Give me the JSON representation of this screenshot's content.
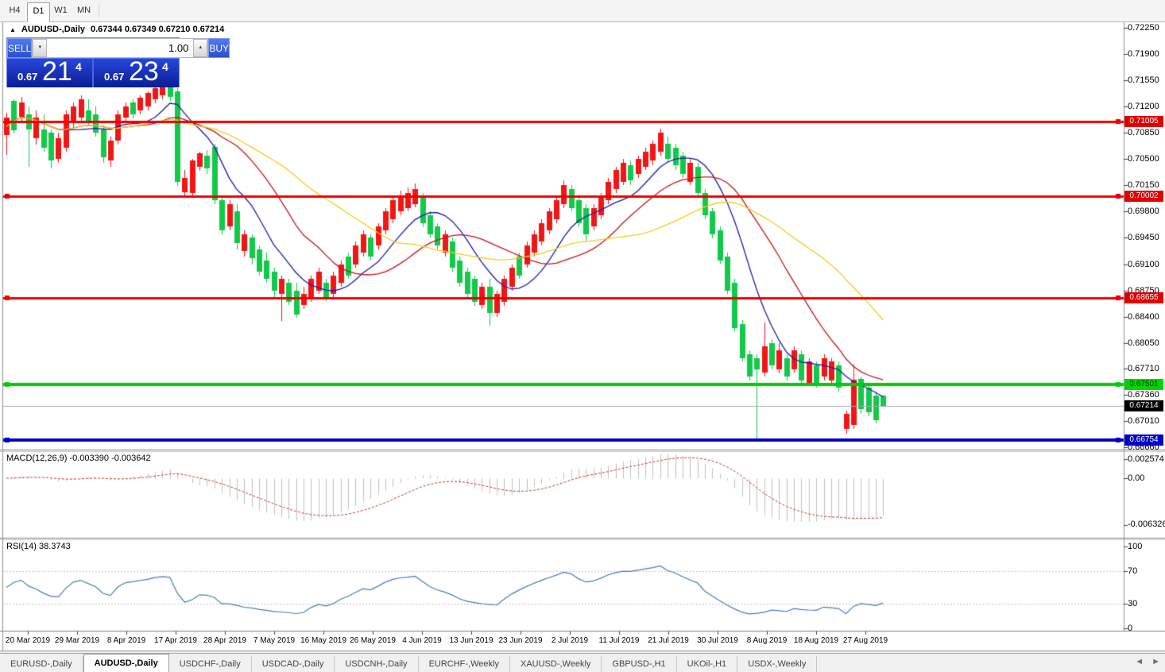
{
  "toolbar": {
    "timeframes": [
      {
        "label": "H4",
        "active": false
      },
      {
        "label": "D1",
        "active": true
      },
      {
        "label": "W1",
        "active": false
      },
      {
        "label": "MN",
        "active": false
      }
    ]
  },
  "chart": {
    "collapse_icon": "▲",
    "title": "AUDUSD-,Daily",
    "values": "0.67344 0.67349 0.67210 0.67214"
  },
  "trade_panel": {
    "sell_label": "SELL",
    "buy_label": "BUY",
    "volume": "1.00",
    "spin_down_icon": "▼",
    "spin_up_icon": "▲",
    "sell_price_small": "0.67",
    "sell_price_big": "21",
    "sell_price_sup": "4",
    "buy_price_small": "0.67",
    "buy_price_big": "23",
    "buy_price_sup": "4"
  },
  "indicators": {
    "macd_label": "MACD(12,26,9) -0.003390 -0.003642",
    "rsi_label": "RSI(14) 38.3743"
  },
  "tabs": {
    "items": [
      {
        "label": "EURUSD-,Daily",
        "active": false
      },
      {
        "label": "AUDUSD-,Daily",
        "active": true
      },
      {
        "label": "USDCHF-,Daily",
        "active": false
      },
      {
        "label": "USDCAD-,Daily",
        "active": false
      },
      {
        "label": "USDCNH-,Daily",
        "active": false
      },
      {
        "label": "EURCHF-,Weekly",
        "active": false
      },
      {
        "label": "XAUUSD-,Weekly",
        "active": false
      },
      {
        "label": "GBPUSD-,H1",
        "active": false
      },
      {
        "label": "UKOil-,H1",
        "active": false
      },
      {
        "label": "USDX-,Weekly",
        "active": false
      }
    ],
    "scroll_left_icon": "◄",
    "scroll_right_icon": "►"
  },
  "chart_data": {
    "type": "candlestick",
    "symbol": "AUDUSD-",
    "timeframe": "Daily",
    "ohlc_display": {
      "open": "0.67344",
      "high": "0.67349",
      "low": "0.67210",
      "close": "0.67214"
    },
    "current_price": 0.67214,
    "colors": {
      "bull_body": "#f21515",
      "bear_body": "#12c94a",
      "ma_fast": "#1a1ab4",
      "ma_mid": "#c81414",
      "ma_slow": "#f0cf1e",
      "macd_hist": "#c0c0c0",
      "macd_signal": "#cc3333",
      "rsi_line": "#4a7ac0"
    },
    "y_axis_ticks": [
      "0.72250",
      "0.71900",
      "0.71550",
      "0.71200",
      "0.70850",
      "0.70500",
      "0.70150",
      "0.69800",
      "0.69450",
      "0.69100",
      "0.68750",
      "0.68400",
      "0.68050",
      "0.67710",
      "0.67360",
      "0.67010",
      "0.66660"
    ],
    "price_tags": [
      {
        "value": 0.71005,
        "label": "0.71005",
        "bg": "#e00000",
        "fg": "#ffffff"
      },
      {
        "value": 0.70002,
        "label": "0.70002",
        "bg": "#e00000",
        "fg": "#ffffff"
      },
      {
        "value": 0.68655,
        "label": "0.68655",
        "bg": "#e00000",
        "fg": "#ffffff"
      },
      {
        "value": 0.67501,
        "label": "0.67501",
        "bg": "#00d400",
        "fg": "#003300"
      },
      {
        "value": 0.67214,
        "label": "0.67214",
        "bg": "#000000",
        "fg": "#ffffff"
      },
      {
        "value": 0.66754,
        "label": "0.66754",
        "bg": "#0000cc",
        "fg": "#ffffff"
      }
    ],
    "levels": [
      {
        "price": 0.71005,
        "color": "#ee0000",
        "width": 3
      },
      {
        "price": 0.70002,
        "color": "#ee0000",
        "width": 3
      },
      {
        "price": 0.68655,
        "color": "#ee0000",
        "width": 3
      },
      {
        "price": 0.67501,
        "color": "#00cc00",
        "width": 4
      },
      {
        "price": 0.66754,
        "color": "#0000bb",
        "width": 4
      }
    ],
    "x_axis_ticks": [
      "20 Mar 2019",
      "29 Mar 2019",
      "8 Apr 2019",
      "17 Apr 2019",
      "28 Apr 2019",
      "7 May 2019",
      "16 May 2019",
      "26 May 2019",
      "4 Jun 2019",
      "13 Jun 2019",
      "23 Jun 2019",
      "2 Jul 2019",
      "11 Jul 2019",
      "21 Jul 2019",
      "30 Jul 2019",
      "8 Aug 2019",
      "18 Aug 2019",
      "27 Aug 2019"
    ],
    "candles": [
      [
        0.7112,
        0.7056,
        0.7105,
        0.7082,
        "r"
      ],
      [
        0.713,
        0.7085,
        0.7128,
        0.7088,
        "g"
      ],
      [
        0.7133,
        0.7098,
        0.7125,
        0.7106,
        "r"
      ],
      [
        0.712,
        0.704,
        0.711,
        0.709,
        "g"
      ],
      [
        0.7115,
        0.707,
        0.7105,
        0.7078,
        "r"
      ],
      [
        0.711,
        0.706,
        0.709,
        0.7065,
        "g"
      ],
      [
        0.709,
        0.7038,
        0.7085,
        0.7048,
        "g"
      ],
      [
        0.7085,
        0.7045,
        0.7078,
        0.705,
        "r"
      ],
      [
        0.7115,
        0.706,
        0.711,
        0.7065,
        "r"
      ],
      [
        0.7125,
        0.709,
        0.712,
        0.71,
        "r"
      ],
      [
        0.7135,
        0.71,
        0.713,
        0.7105,
        "r"
      ],
      [
        0.713,
        0.7095,
        0.7115,
        0.71,
        "g"
      ],
      [
        0.712,
        0.708,
        0.711,
        0.7085,
        "g"
      ],
      [
        0.7095,
        0.7045,
        0.709,
        0.7052,
        "g"
      ],
      [
        0.708,
        0.704,
        0.7075,
        0.7048,
        "r"
      ],
      [
        0.7115,
        0.707,
        0.711,
        0.7075,
        "r"
      ],
      [
        0.7125,
        0.71,
        0.712,
        0.7105,
        "r"
      ],
      [
        0.713,
        0.7105,
        0.7125,
        0.711,
        "g"
      ],
      [
        0.7135,
        0.711,
        0.7132,
        0.7115,
        "r"
      ],
      [
        0.714,
        0.7115,
        0.7138,
        0.712,
        "r"
      ],
      [
        0.7148,
        0.7125,
        0.7145,
        0.713,
        "r"
      ],
      [
        0.7155,
        0.713,
        0.715,
        0.7135,
        "r"
      ],
      [
        0.7152,
        0.7128,
        0.7148,
        0.7133,
        "g"
      ],
      [
        0.7145,
        0.7015,
        0.714,
        0.702,
        "g"
      ],
      [
        0.7035,
        0.7,
        0.7025,
        0.7006,
        "r"
      ],
      [
        0.705,
        0.7,
        0.7048,
        0.7005,
        "r"
      ],
      [
        0.706,
        0.7035,
        0.7058,
        0.704,
        "r"
      ],
      [
        0.7062,
        0.703,
        0.7055,
        0.7038,
        "g"
      ],
      [
        0.707,
        0.699,
        0.7066,
        0.6995,
        "g"
      ],
      [
        0.7,
        0.695,
        0.6995,
        0.6955,
        "g"
      ],
      [
        0.6995,
        0.6955,
        0.699,
        0.696,
        "r"
      ],
      [
        0.699,
        0.693,
        0.698,
        0.6938,
        "g"
      ],
      [
        0.6955,
        0.692,
        0.695,
        0.6928,
        "r"
      ],
      [
        0.695,
        0.691,
        0.6945,
        0.6918,
        "g"
      ],
      [
        0.6935,
        0.6895,
        0.693,
        0.69,
        "g"
      ],
      [
        0.6925,
        0.6885,
        0.6915,
        0.689,
        "g"
      ],
      [
        0.6905,
        0.6865,
        0.69,
        0.6875,
        "g"
      ],
      [
        0.6895,
        0.6835,
        0.689,
        0.687,
        "r"
      ],
      [
        0.689,
        0.6855,
        0.6885,
        0.686,
        "g"
      ],
      [
        0.6885,
        0.6838,
        0.6875,
        0.6843,
        "g"
      ],
      [
        0.688,
        0.685,
        0.687,
        0.6855,
        "r"
      ],
      [
        0.6895,
        0.686,
        0.689,
        0.6865,
        "r"
      ],
      [
        0.6905,
        0.687,
        0.69,
        0.6875,
        "r"
      ],
      [
        0.689,
        0.686,
        0.6885,
        0.6865,
        "g"
      ],
      [
        0.69,
        0.6865,
        0.6895,
        0.687,
        "r"
      ],
      [
        0.6915,
        0.688,
        0.691,
        0.6885,
        "r"
      ],
      [
        0.6925,
        0.689,
        0.692,
        0.6895,
        "g"
      ],
      [
        0.694,
        0.6905,
        0.6935,
        0.691,
        "r"
      ],
      [
        0.6955,
        0.692,
        0.695,
        0.6925,
        "r"
      ],
      [
        0.695,
        0.6915,
        0.6945,
        0.692,
        "g"
      ],
      [
        0.6965,
        0.693,
        0.696,
        0.6935,
        "r"
      ],
      [
        0.6985,
        0.695,
        0.698,
        0.6955,
        "r"
      ],
      [
        0.7,
        0.6965,
        0.6995,
        0.697,
        "r"
      ],
      [
        0.7008,
        0.6975,
        0.7002,
        0.698,
        "r"
      ],
      [
        0.7012,
        0.698,
        0.7005,
        0.6985,
        "r"
      ],
      [
        0.7017,
        0.6985,
        0.701,
        0.699,
        "r"
      ],
      [
        0.7005,
        0.696,
        0.7,
        0.6965,
        "g"
      ],
      [
        0.698,
        0.6945,
        0.6975,
        0.695,
        "g"
      ],
      [
        0.6965,
        0.693,
        0.696,
        0.6935,
        "g"
      ],
      [
        0.6955,
        0.692,
        0.695,
        0.6925,
        "r"
      ],
      [
        0.6945,
        0.69,
        0.694,
        0.6905,
        "g"
      ],
      [
        0.692,
        0.688,
        0.6915,
        0.6885,
        "g"
      ],
      [
        0.6905,
        0.6865,
        0.69,
        0.687,
        "g"
      ],
      [
        0.6895,
        0.6855,
        0.689,
        0.686,
        "g"
      ],
      [
        0.6885,
        0.685,
        0.688,
        0.6855,
        "r"
      ],
      [
        0.689,
        0.6828,
        0.688,
        0.6845,
        "g"
      ],
      [
        0.6875,
        0.684,
        0.687,
        0.6845,
        "r"
      ],
      [
        0.6895,
        0.6855,
        0.689,
        0.686,
        "r"
      ],
      [
        0.691,
        0.6875,
        0.6905,
        0.688,
        "r"
      ],
      [
        0.6925,
        0.689,
        0.692,
        0.6895,
        "g"
      ],
      [
        0.694,
        0.6905,
        0.6935,
        0.691,
        "r"
      ],
      [
        0.6955,
        0.692,
        0.695,
        0.6925,
        "r"
      ],
      [
        0.697,
        0.6935,
        0.6965,
        0.694,
        "r"
      ],
      [
        0.6985,
        0.695,
        0.698,
        0.6955,
        "r"
      ],
      [
        0.7,
        0.6965,
        0.6995,
        0.697,
        "r"
      ],
      [
        0.7022,
        0.6985,
        0.7015,
        0.699,
        "r"
      ],
      [
        0.7015,
        0.698,
        0.701,
        0.6985,
        "g"
      ],
      [
        0.7,
        0.696,
        0.6995,
        0.6965,
        "g"
      ],
      [
        0.699,
        0.694,
        0.6985,
        0.695,
        "g"
      ],
      [
        0.699,
        0.6955,
        0.6985,
        0.696,
        "r"
      ],
      [
        0.7005,
        0.697,
        0.7,
        0.6975,
        "r"
      ],
      [
        0.7025,
        0.699,
        0.702,
        0.6995,
        "r"
      ],
      [
        0.704,
        0.7005,
        0.7035,
        0.701,
        "r"
      ],
      [
        0.705,
        0.7015,
        0.7045,
        0.702,
        "r"
      ],
      [
        0.7048,
        0.7015,
        0.7042,
        0.7022,
        "g"
      ],
      [
        0.7055,
        0.7025,
        0.705,
        0.703,
        "r"
      ],
      [
        0.7065,
        0.7035,
        0.706,
        0.704,
        "r"
      ],
      [
        0.7075,
        0.7042,
        0.707,
        0.7048,
        "r"
      ],
      [
        0.70907,
        0.7055,
        0.7085,
        0.706,
        "r"
      ],
      [
        0.708,
        0.7045,
        0.707,
        0.705,
        "g"
      ],
      [
        0.707,
        0.7035,
        0.7065,
        0.7042,
        "g"
      ],
      [
        0.706,
        0.7025,
        0.7055,
        0.703,
        "g"
      ],
      [
        0.705,
        0.7015,
        0.7045,
        0.702,
        "r"
      ],
      [
        0.7045,
        0.7,
        0.704,
        0.7005,
        "g"
      ],
      [
        0.701,
        0.697,
        0.7005,
        0.6975,
        "g"
      ],
      [
        0.6985,
        0.6945,
        0.698,
        0.695,
        "g"
      ],
      [
        0.696,
        0.691,
        0.6955,
        0.6915,
        "g"
      ],
      [
        0.6925,
        0.687,
        0.692,
        0.6875,
        "g"
      ],
      [
        0.689,
        0.682,
        0.6885,
        0.6825,
        "g"
      ],
      [
        0.6835,
        0.678,
        0.683,
        0.6785,
        "g"
      ],
      [
        0.6795,
        0.6755,
        0.679,
        0.676,
        "g"
      ],
      [
        0.679,
        0.6677,
        0.6785,
        0.677,
        "g"
      ],
      [
        0.6832,
        0.676,
        0.68,
        0.6765,
        "r"
      ],
      [
        0.681,
        0.677,
        0.6805,
        0.6775,
        "g"
      ],
      [
        0.6805,
        0.6765,
        0.6795,
        0.677,
        "r"
      ],
      [
        0.679,
        0.6755,
        0.6785,
        0.676,
        "g"
      ],
      [
        0.68,
        0.6765,
        0.6795,
        0.677,
        "r"
      ],
      [
        0.6795,
        0.675,
        0.679,
        0.6755,
        "g"
      ],
      [
        0.6785,
        0.6748,
        0.678,
        0.6752,
        "r"
      ],
      [
        0.678,
        0.6745,
        0.6775,
        0.675,
        "g"
      ],
      [
        0.679,
        0.6755,
        0.6785,
        0.676,
        "r"
      ],
      [
        0.6785,
        0.675,
        0.678,
        0.6755,
        "r"
      ],
      [
        0.678,
        0.674,
        0.6775,
        0.6745,
        "g"
      ],
      [
        0.6715,
        0.6684,
        0.671,
        0.669,
        "r"
      ],
      [
        0.6776,
        0.669,
        0.6756,
        0.6696,
        "r"
      ],
      [
        0.676,
        0.671,
        0.6757,
        0.6717,
        "g"
      ],
      [
        0.675,
        0.6708,
        0.6745,
        0.6713,
        "g"
      ],
      [
        0.674,
        0.6698,
        0.6735,
        0.6702,
        "g"
      ],
      [
        0.67349,
        0.6721,
        0.67344,
        0.67214,
        "g"
      ]
    ],
    "moving_averages": [
      {
        "name": "fast",
        "window": 8,
        "color": "#1a1ab4"
      },
      {
        "name": "mid",
        "window": 17,
        "color": "#c81414"
      },
      {
        "name": "slow",
        "window": 30,
        "color": "#f0cf1e"
      }
    ],
    "macd": {
      "params": [
        12,
        26,
        9
      ],
      "display_values": [
        "-0.003390",
        "-0.003642"
      ],
      "axis_ticks": [
        "0.002574",
        "0.00",
        "-0.006326"
      ]
    },
    "rsi": {
      "period": 14,
      "display_value": "38.3743",
      "axis_ticks": [
        "100",
        "70",
        "30",
        "0"
      ],
      "level_lines": [
        70,
        30
      ]
    }
  }
}
